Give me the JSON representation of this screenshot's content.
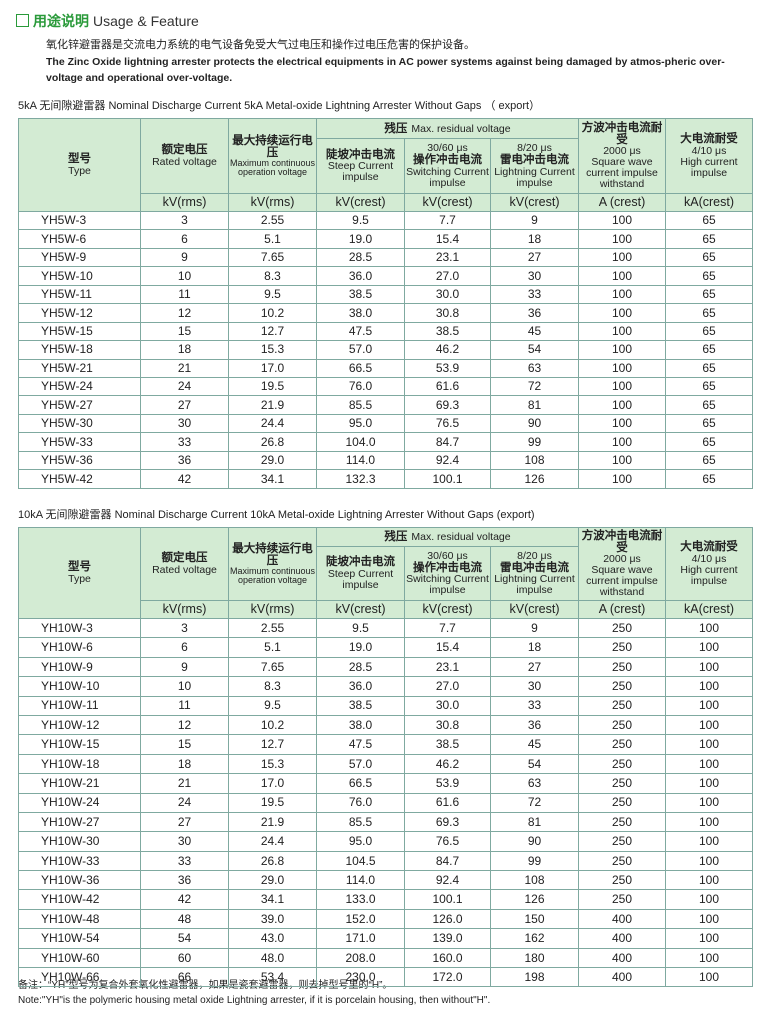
{
  "header": {
    "title_cn": "用途说明",
    "title_en": "Usage & Feature"
  },
  "intro": {
    "cn": "氧化锌避雷器是交流电力系统的电气设备免受大气过电压和操作过电压危害的保护设备。",
    "en": "The Zinc Oxide lightning arrester protects the electrical equipments in AC power systems against being damaged by atmos-pheric over-voltage and operational over-voltage."
  },
  "tables": [
    {
      "title": "5kA 无间隙避雷器 Nominal Discharge Current 5kA Metal-oxide Lightning  Arrester Without Gaps （ export）",
      "headers": {
        "type": {
          "cn": "型号",
          "en": "Type"
        },
        "rated": {
          "cn": "额定电压",
          "en": "Rated voltage"
        },
        "mcov": {
          "cn": "最大持续运行电压",
          "en": "Maximum continuous operation voltage"
        },
        "residual": {
          "cn": "残压",
          "en": "Max. residual voltage"
        },
        "steep": {
          "cn": "陡坡冲击电流",
          "en": "Steep Current impulse"
        },
        "switching": {
          "label": "30/60 μs",
          "cn": "操作冲击电流",
          "en": "Switching Current impulse"
        },
        "lightning": {
          "label": "8/20 μs",
          "cn": "雷电冲击电流",
          "en": "Lightning Current impulse"
        },
        "square": {
          "cn": "方波冲击电流耐受",
          "label": "2000 μs",
          "en": "Square wave current impulse withstand"
        },
        "high": {
          "cn": "大电流耐受",
          "label": "4/10 μs",
          "en": "High current impulse"
        }
      },
      "units": [
        "kV(rms)",
        "kV(rms)",
        "kV(crest)",
        "kV(crest)",
        "kV(crest)",
        "A (crest)",
        "kA(crest)"
      ],
      "rows": [
        [
          "YH5W-3",
          "3",
          "2.55",
          "9.5",
          "7.7",
          "9",
          "100",
          "65"
        ],
        [
          "YH5W-6",
          "6",
          "5.1",
          "19.0",
          "15.4",
          "18",
          "100",
          "65"
        ],
        [
          "YH5W-9",
          "9",
          "7.65",
          "28.5",
          "23.1",
          "27",
          "100",
          "65"
        ],
        [
          "YH5W-10",
          "10",
          "8.3",
          "36.0",
          "27.0",
          "30",
          "100",
          "65"
        ],
        [
          "YH5W-11",
          "11",
          "9.5",
          "38.5",
          "30.0",
          "33",
          "100",
          "65"
        ],
        [
          "YH5W-12",
          "12",
          "10.2",
          "38.0",
          "30.8",
          "36",
          "100",
          "65"
        ],
        [
          "YH5W-15",
          "15",
          "12.7",
          "47.5",
          "38.5",
          "45",
          "100",
          "65"
        ],
        [
          "YH5W-18",
          "18",
          "15.3",
          "57.0",
          "46.2",
          "54",
          "100",
          "65"
        ],
        [
          "YH5W-21",
          "21",
          "17.0",
          "66.5",
          "53.9",
          "63",
          "100",
          "65"
        ],
        [
          "YH5W-24",
          "24",
          "19.5",
          "76.0",
          "61.6",
          "72",
          "100",
          "65"
        ],
        [
          "YH5W-27",
          "27",
          "21.9",
          "85.5",
          "69.3",
          "81",
          "100",
          "65"
        ],
        [
          "YH5W-30",
          "30",
          "24.4",
          "95.0",
          "76.5",
          "90",
          "100",
          "65"
        ],
        [
          "YH5W-33",
          "33",
          "26.8",
          "104.0",
          "84.7",
          "99",
          "100",
          "65"
        ],
        [
          "YH5W-36",
          "36",
          "29.0",
          "114.0",
          "92.4",
          "108",
          "100",
          "65"
        ],
        [
          "YH5W-42",
          "42",
          "34.1",
          "132.3",
          "100.1",
          "126",
          "100",
          "65"
        ]
      ]
    },
    {
      "title": "10kA 无间隙避雷器 Nominal Discharge Current 10kA Metal-oxide Lightning Arrester Without Gaps (export)",
      "headers": {
        "type": {
          "cn": "型号",
          "en": "Type"
        },
        "rated": {
          "cn": "额定电压",
          "en": "Rated voltage"
        },
        "mcov": {
          "cn": "最大持续运行电压",
          "en": "Maximum continuous operation voltage"
        },
        "residual": {
          "cn": "残压",
          "en": "Max. residual voltage"
        },
        "steep": {
          "cn": "陡坡冲击电流",
          "en": "Steep Current impulse"
        },
        "switching": {
          "label": "30/60 μs",
          "cn": "操作冲击电流",
          "en": "Switching Current impulse"
        },
        "lightning": {
          "label": "8/20 μs",
          "cn": "雷电冲击电流",
          "en": "Lightning Current impulse"
        },
        "square": {
          "cn": "方波冲击电流耐受",
          "label": "2000 μs",
          "en": "Square wave current impulse withstand"
        },
        "high": {
          "cn": "大电流耐受",
          "label": "4/10 μs",
          "en": "High current impulse"
        }
      },
      "units": [
        "kV(rms)",
        "kV(rms)",
        "kV(crest)",
        "kV(crest)",
        "kV(crest)",
        "A (crest)",
        "kA(crest)"
      ],
      "rows": [
        [
          "YH10W-3",
          "3",
          "2.55",
          "9.5",
          "7.7",
          "9",
          "250",
          "100"
        ],
        [
          "YH10W-6",
          "6",
          "5.1",
          "19.0",
          "15.4",
          "18",
          "250",
          "100"
        ],
        [
          "YH10W-9",
          "9",
          "7.65",
          "28.5",
          "23.1",
          "27",
          "250",
          "100"
        ],
        [
          "YH10W-10",
          "10",
          "8.3",
          "36.0",
          "27.0",
          "30",
          "250",
          "100"
        ],
        [
          "YH10W-11",
          "11",
          "9.5",
          "38.5",
          "30.0",
          "33",
          "250",
          "100"
        ],
        [
          "YH10W-12",
          "12",
          "10.2",
          "38.0",
          "30.8",
          "36",
          "250",
          "100"
        ],
        [
          "YH10W-15",
          "15",
          "12.7",
          "47.5",
          "38.5",
          "45",
          "250",
          "100"
        ],
        [
          "YH10W-18",
          "18",
          "15.3",
          "57.0",
          "46.2",
          "54",
          "250",
          "100"
        ],
        [
          "YH10W-21",
          "21",
          "17.0",
          "66.5",
          "53.9",
          "63",
          "250",
          "100"
        ],
        [
          "YH10W-24",
          "24",
          "19.5",
          "76.0",
          "61.6",
          "72",
          "250",
          "100"
        ],
        [
          "YH10W-27",
          "27",
          "21.9",
          "85.5",
          "69.3",
          "81",
          "250",
          "100"
        ],
        [
          "YH10W-30",
          "30",
          "24.4",
          "95.0",
          "76.5",
          "90",
          "250",
          "100"
        ],
        [
          "YH10W-33",
          "33",
          "26.8",
          "104.5",
          "84.7",
          "99",
          "250",
          "100"
        ],
        [
          "YH10W-36",
          "36",
          "29.0",
          "114.0",
          "92.4",
          "108",
          "250",
          "100"
        ],
        [
          "YH10W-42",
          "42",
          "34.1",
          "133.0",
          "100.1",
          "126",
          "250",
          "100"
        ],
        [
          "YH10W-48",
          "48",
          "39.0",
          "152.0",
          "126.0",
          "150",
          "400",
          "100"
        ],
        [
          "YH10W-54",
          "54",
          "43.0",
          "171.0",
          "139.0",
          "162",
          "400",
          "100"
        ],
        [
          "YH10W-60",
          "60",
          "48.0",
          "208.0",
          "160.0",
          "180",
          "400",
          "100"
        ],
        [
          "YH10W-66",
          "66",
          "53.4",
          "230.0",
          "172.0",
          "198",
          "400",
          "100"
        ]
      ]
    }
  ],
  "notes": {
    "cn": "备注：“YH”型号为复合外套氧化性避雷器，如果是瓷套避雷器，则去掉型号里的“H”。",
    "en": "Note:\"YH\"is the polymeric housing metal oxide Lightning arrester, if it is porcelain housing, then without\"H\"."
  }
}
